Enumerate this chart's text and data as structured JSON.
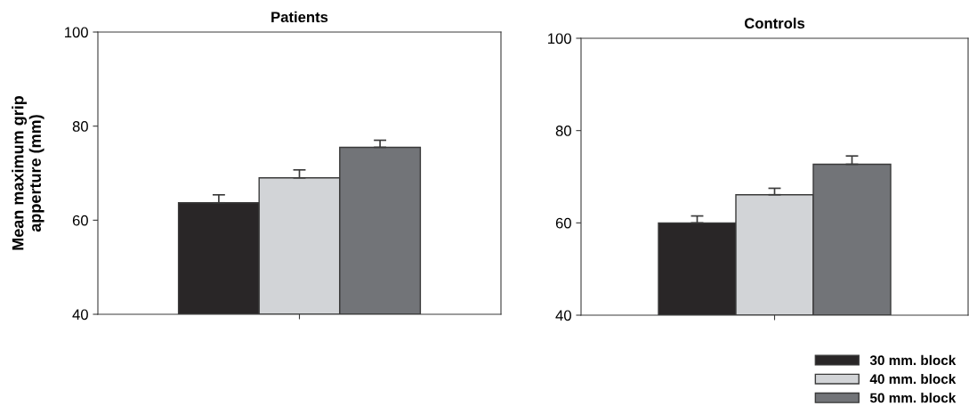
{
  "chart_data": [
    {
      "type": "bar",
      "title": "Patients",
      "ylabel": "Mean maximum grip\napperture (mm)",
      "categories": [
        null
      ],
      "ylim": [
        40,
        100
      ],
      "yticks": [
        40,
        60,
        80,
        100
      ],
      "series": [
        {
          "color": "#292627",
          "values": [
            63.7
          ],
          "errors": [
            [
              63.7,
              65.4
            ]
          ]
        },
        {
          "color": "#d2d4d7",
          "values": [
            69.0
          ],
          "errors": [
            [
              69.0,
              70.7
            ]
          ]
        },
        {
          "color": "#727478",
          "values": [
            75.5
          ],
          "errors": [
            [
              75.5,
              77.0
            ]
          ]
        }
      ]
    },
    {
      "type": "bar",
      "title": "Controls",
      "categories": [
        null
      ],
      "ylim": [
        40,
        100
      ],
      "yticks": [
        40,
        60,
        80,
        100
      ],
      "legend": "bottom right",
      "series": [
        {
          "name": "30 mm. block",
          "color": "#292627",
          "values": [
            60.0
          ],
          "errors": [
            [
              60.0,
              61.5
            ]
          ]
        },
        {
          "name": "40 mm. block",
          "color": "#d2d4d7",
          "values": [
            66.1
          ],
          "errors": [
            [
              66.1,
              67.5
            ]
          ]
        },
        {
          "name": "50 mm. block",
          "color": "#727478",
          "values": [
            72.7
          ],
          "errors": [
            [
              72.7,
              74.5
            ]
          ]
        }
      ]
    }
  ]
}
